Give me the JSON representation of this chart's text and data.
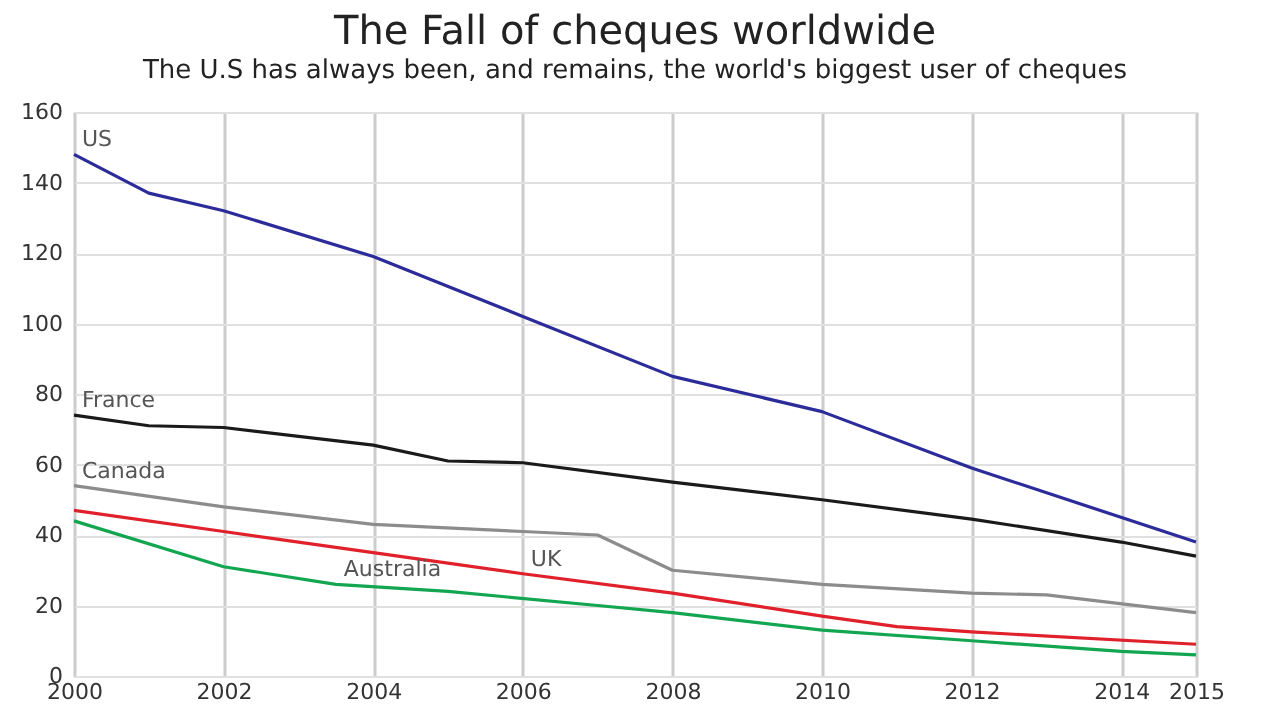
{
  "chart_data": {
    "type": "line",
    "title": "The Fall of cheques worldwide",
    "subtitle": "The U.S has always been, and remains, the world's biggest user of cheques",
    "xlim": [
      2000,
      2015
    ],
    "xticks": [
      2000,
      2002,
      2004,
      2006,
      2008,
      2010,
      2012,
      2014,
      2015
    ],
    "ylim": [
      0,
      160
    ],
    "yticks": [
      0,
      20,
      40,
      60,
      80,
      100,
      120,
      140,
      160
    ],
    "grid": true,
    "legend": false,
    "marker": "none",
    "line_style": "solid",
    "series": [
      {
        "name": "US",
        "color": "#2b2b9a",
        "x": [
          2000,
          2001,
          2002,
          2004,
          2006,
          2008,
          2010,
          2012,
          2015
        ],
        "values": [
          148,
          137,
          132,
          119,
          102,
          85,
          75,
          59,
          38
        ]
      },
      {
        "name": "France",
        "color": "#1a1a1a",
        "x": [
          2000,
          2001,
          2002,
          2004,
          2005,
          2006,
          2008,
          2010,
          2012,
          2014,
          2015
        ],
        "values": [
          74,
          71,
          70.5,
          65.5,
          61,
          60.5,
          55,
          50,
          44.5,
          38,
          34
        ]
      },
      {
        "name": "Canada",
        "color": "#8c8c8c",
        "x": [
          2000,
          2002,
          2004,
          2006,
          2007,
          2008,
          2010,
          2012,
          2013,
          2015
        ],
        "values": [
          54,
          48,
          43,
          41,
          40,
          30,
          26,
          23.5,
          23,
          18
        ]
      },
      {
        "name": "UK",
        "color": "#e0202a",
        "x": [
          2000,
          2002,
          2004,
          2006,
          2008,
          2010,
          2011,
          2012,
          2015
        ],
        "values": [
          47,
          41,
          35,
          29,
          23.5,
          17,
          14,
          12.5,
          9
        ]
      },
      {
        "name": "Australia",
        "color": "#12a650",
        "x": [
          2000,
          2002,
          2003.5,
          2005,
          2007,
          2008,
          2010,
          2012,
          2014,
          2015
        ],
        "values": [
          44,
          31,
          26,
          24,
          20,
          18,
          13,
          10,
          7,
          6
        ]
      }
    ]
  }
}
